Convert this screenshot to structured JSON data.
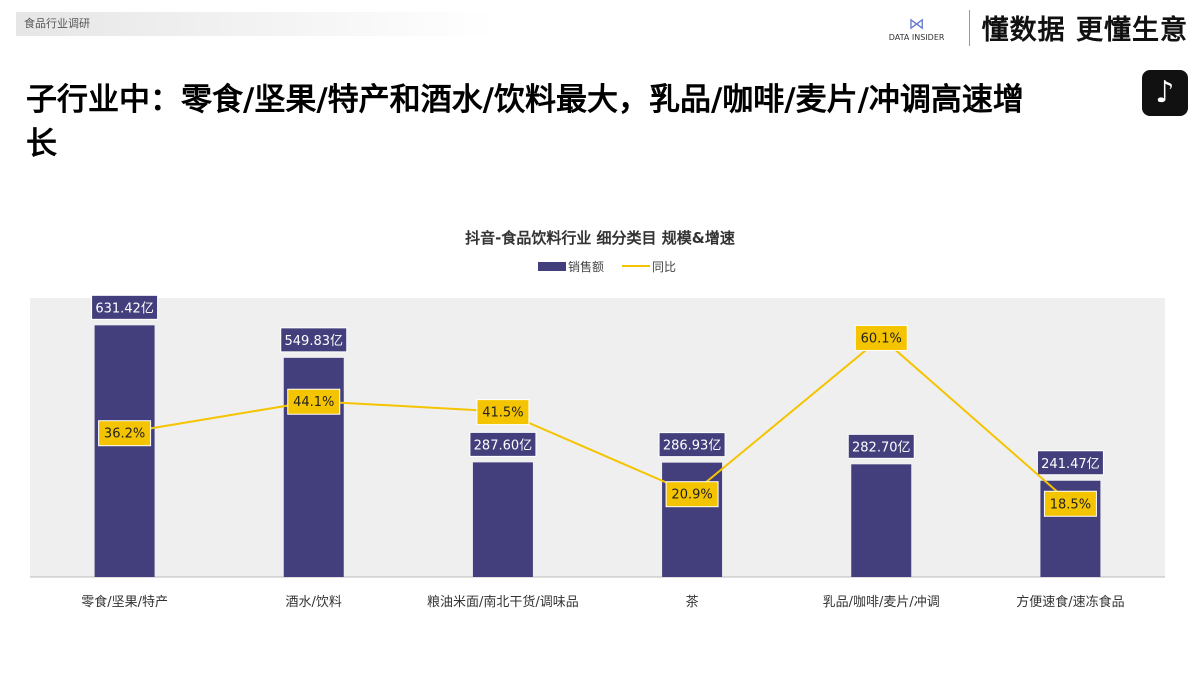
{
  "header": {
    "section": "食品行业调研",
    "logo_text": "DATA INSIDER",
    "slogan": "懂数据 更懂生意",
    "title": "子行业中：零食/坚果/特产和酒水/饮料最大，乳品/咖啡/麦片/冲调高速增长"
  },
  "chart_data": {
    "type": "bar+line",
    "title": "抖音-食品饮料行业 细分类目 规模&增速",
    "categories": [
      "零食/坚果/特产",
      "酒水/饮料",
      "粮油米面/南北干货/调味品",
      "茶",
      "乳品/咖啡/麦片/冲调",
      "方便速食/速冻食品"
    ],
    "series": [
      {
        "name": "销售额",
        "type": "bar",
        "values": [
          631.42,
          549.83,
          287.6,
          286.93,
          282.7,
          241.47
        ],
        "labels": [
          "631.42亿",
          "549.83亿",
          "287.60亿",
          "286.93亿",
          "282.70亿",
          "241.47亿"
        ],
        "color": "#433f7c"
      },
      {
        "name": "同比",
        "type": "line",
        "values": [
          36.2,
          44.1,
          41.5,
          20.9,
          60.1,
          18.5
        ],
        "labels": [
          "36.2%",
          "44.1%",
          "41.5%",
          "20.9%",
          "60.1%",
          "18.5%"
        ],
        "color": "#f5c400"
      }
    ],
    "ylim": [
      0,
      700
    ],
    "y2lim": [
      0,
      70
    ],
    "legend": "top",
    "grid": false,
    "plot_bg": "#efefef"
  }
}
